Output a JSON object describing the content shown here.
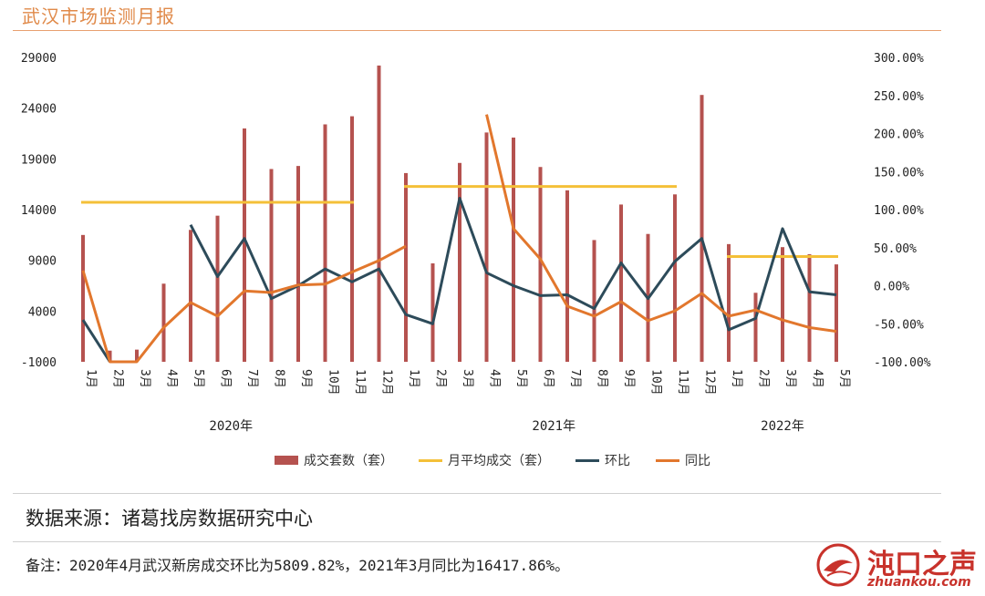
{
  "header": {
    "title": "武汉市场监测月报"
  },
  "chart_data": {
    "type": "bar+line",
    "categories": [
      "1月",
      "2月",
      "3月",
      "4月",
      "5月",
      "6月",
      "7月",
      "8月",
      "9月",
      "10月",
      "11月",
      "12月",
      "1月",
      "2月",
      "3月",
      "4月",
      "5月",
      "6月",
      "7月",
      "8月",
      "9月",
      "10月",
      "11月",
      "12月",
      "1月",
      "2月",
      "3月",
      "4月",
      "5月"
    ],
    "year_groups": [
      {
        "label": "2020年",
        "start": 0,
        "end": 11
      },
      {
        "label": "2021年",
        "start": 12,
        "end": 23
      },
      {
        "label": "2022年",
        "start": 24,
        "end": 28
      }
    ],
    "left_axis": {
      "min": -1000,
      "max": 29000,
      "ticks": [
        "29000",
        "24000",
        "19000",
        "14000",
        "9000",
        "4000",
        "-1000"
      ]
    },
    "right_axis": {
      "min": -100,
      "max": 300,
      "unit": "%",
      "ticks": [
        "300.00%",
        "250.00%",
        "200.00%",
        "150.00%",
        "100.00%",
        "50.00%",
        "0.00%",
        "-50.00%",
        "-100.00%"
      ]
    },
    "series": [
      {
        "name": "成交套数（套）",
        "type": "bar",
        "axis": "left",
        "color": "#b5524f",
        "values": [
          11500,
          100,
          200,
          6700,
          12000,
          13400,
          22000,
          18000,
          18300,
          22400,
          23200,
          28200,
          17600,
          8700,
          18600,
          21600,
          21100,
          18200,
          15900,
          11000,
          14500,
          11600,
          15500,
          25300,
          10600,
          5800,
          10300,
          9600,
          8600
        ]
      },
      {
        "name": "月平均成交（套）",
        "type": "line",
        "axis": "left",
        "color": "#f4c038",
        "segments": [
          {
            "from": 0,
            "to": 10,
            "value": 14720
          },
          {
            "from": 12,
            "to": 22,
            "value": 16280
          },
          {
            "from": 24,
            "to": 28,
            "value": 9370
          }
        ]
      },
      {
        "name": "环比",
        "type": "line",
        "axis": "right",
        "color": "#2d4b5a",
        "values": [
          -45,
          -100,
          null,
          null,
          80,
          12,
          62,
          -17,
          0,
          22,
          5,
          22,
          -38,
          -50,
          115,
          17,
          0,
          -13,
          -12,
          -30,
          30,
          -17,
          32,
          62,
          -58,
          -43,
          75,
          -8,
          -12
        ]
      },
      {
        "name": "同比",
        "type": "line",
        "axis": "right",
        "color": "#e2772d",
        "values": [
          20,
          -100,
          -100,
          -55,
          -22,
          -40,
          -7,
          -9,
          1,
          2,
          18,
          33,
          52,
          null,
          null,
          225,
          75,
          35,
          -27,
          -40,
          -21,
          -46,
          -33,
          -10,
          -40,
          -32,
          -45,
          -55,
          -60
        ]
      }
    ]
  },
  "legend": {
    "items": [
      {
        "label": "成交套数（套）",
        "color": "#b5524f",
        "kind": "bar"
      },
      {
        "label": "月平均成交（套）",
        "color": "#f4c038",
        "kind": "line"
      },
      {
        "label": "环比",
        "color": "#2d4b5a",
        "kind": "line"
      },
      {
        "label": "同比",
        "color": "#e2772d",
        "kind": "line"
      }
    ]
  },
  "source": {
    "text": "数据来源：诸葛找房数据研究中心"
  },
  "footnote": {
    "text": "备注：2020年4月武汉新房成交环比为5809.82%，2021年3月同比为16417.86%。"
  },
  "logo": {
    "text": "沌口之声",
    "sub": "zhuankou.com",
    "color": "#c8322b"
  }
}
